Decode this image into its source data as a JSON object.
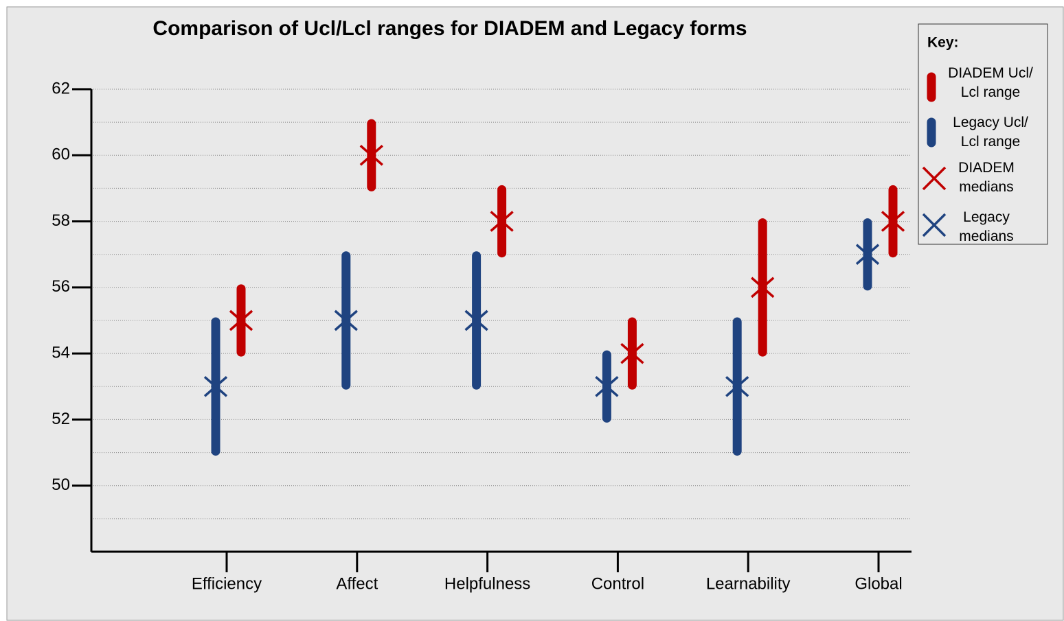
{
  "chart_data": {
    "type": "range",
    "title": "Comparison of Ucl/Lcl ranges for DIADEM and Legacy forms",
    "legend_title": "Key:",
    "categories": [
      "Efficiency",
      "Affect",
      "Helpfulness",
      "Control",
      "Learnability",
      "Global"
    ],
    "ylim": [
      48,
      62
    ],
    "yticks": [
      50,
      52,
      54,
      56,
      58,
      60,
      62
    ],
    "minor_yticks": [
      49,
      51,
      53,
      55,
      57,
      59,
      61
    ],
    "grid": true,
    "legend_position": "upper right",
    "ranges": [
      {
        "name": "DIADEM Ucl/\nLcl range",
        "color": "#c00000",
        "lower": [
          54,
          59,
          57,
          53,
          54,
          57
        ],
        "upper": [
          56,
          61,
          59,
          55,
          58,
          59
        ]
      },
      {
        "name": "Legacy Ucl/\nLcl range",
        "color": "#1f4380",
        "lower": [
          51,
          53,
          53,
          52,
          51,
          56
        ],
        "upper": [
          55,
          57,
          57,
          54,
          55,
          58
        ]
      }
    ],
    "medians": [
      {
        "name": "DIADEM\nmedians",
        "color": "#c00000",
        "values": [
          55,
          60,
          58,
          54,
          56,
          58
        ]
      },
      {
        "name": "Legacy\nmedians",
        "color": "#1f4380",
        "values": [
          53,
          55,
          55,
          53,
          53,
          57
        ]
      }
    ]
  }
}
